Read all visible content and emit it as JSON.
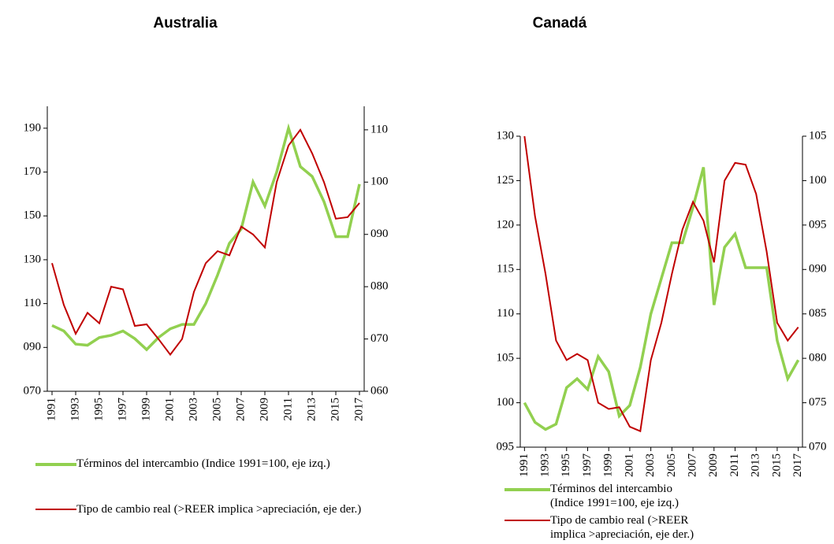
{
  "chart_data": [
    {
      "type": "line",
      "title": "Australia",
      "x": [
        1991,
        1992,
        1993,
        1994,
        1995,
        1996,
        1997,
        1998,
        1999,
        2000,
        2001,
        2002,
        2003,
        2004,
        2005,
        2006,
        2007,
        2008,
        2009,
        2010,
        2011,
        2012,
        2013,
        2014,
        2015,
        2016,
        2017
      ],
      "xlim": [
        1990.6,
        2017.4
      ],
      "xticks": [
        1991,
        1993,
        1995,
        1997,
        1999,
        2001,
        2003,
        2005,
        2007,
        2009,
        2011,
        2013,
        2015,
        2017
      ],
      "ylim": [
        70,
        200
      ],
      "yticks": [
        {
          "value": 70,
          "label": "070"
        },
        {
          "value": 90,
          "label": "090"
        },
        110,
        130,
        150,
        170,
        190
      ],
      "y2lim": [
        60,
        114.5
      ],
      "y2ticks": [
        {
          "value": 60,
          "label": "060"
        },
        {
          "value": 70,
          "label": "070"
        },
        {
          "value": 80,
          "label": "080"
        },
        {
          "value": 90,
          "label": "090"
        },
        100,
        110
      ],
      "series": [
        {
          "name": "Términos del intercambio (Indice 1991=100, eje izq.)",
          "color": "#92d050",
          "values": [
            100,
            97.5,
            91.5,
            91,
            94.5,
            95.5,
            97.5,
            94,
            89,
            94.5,
            98.5,
            100.5,
            100.5,
            110,
            123,
            137.5,
            144,
            165.5,
            154.5,
            170,
            190,
            172.5,
            168,
            156.5,
            140.5,
            140.5,
            164.5
          ]
        },
        {
          "name": "Tipo de cambio real (>REER implica >apreciación, eje der.)",
          "color": "#c00000",
          "axis": "y2",
          "values": [
            84.5,
            76.5,
            71,
            75,
            73,
            80,
            79.5,
            72.5,
            72.8,
            70,
            67,
            70,
            79,
            84.5,
            86.8,
            86,
            91.5,
            90,
            87.5,
            100,
            107,
            110,
            105.5,
            100,
            93,
            93.3,
            96
          ]
        }
      ]
    },
    {
      "type": "line",
      "title": "Canadá",
      "x": [
        1991,
        1992,
        1993,
        1994,
        1995,
        1996,
        1997,
        1998,
        1999,
        2000,
        2001,
        2002,
        2003,
        2004,
        2005,
        2006,
        2007,
        2008,
        2009,
        2010,
        2011,
        2012,
        2013,
        2014,
        2015,
        2016,
        2017
      ],
      "xlim": [
        1990.6,
        2017.4
      ],
      "xticks": [
        1991,
        1993,
        1995,
        1997,
        1999,
        2001,
        2003,
        2005,
        2007,
        2009,
        2011,
        2013,
        2015,
        2017
      ],
      "ylim": [
        95,
        130
      ],
      "yticks": [
        {
          "value": 95,
          "label": "095"
        },
        100,
        105,
        110,
        115,
        120,
        125,
        130
      ],
      "y2lim": [
        70,
        105
      ],
      "y2ticks": [
        {
          "value": 70,
          "label": "070"
        },
        {
          "value": 75,
          "label": "075"
        },
        {
          "value": 80,
          "label": "080"
        },
        {
          "value": 85,
          "label": "085"
        },
        {
          "value": 90,
          "label": "090"
        },
        {
          "value": 95,
          "label": "095"
        },
        100,
        105
      ],
      "series": [
        {
          "name": "Términos del intercambio (Indice 1991=100, eje izq.)",
          "color": "#92d050",
          "values": [
            100,
            97.8,
            97,
            97.6,
            101.7,
            102.7,
            101.5,
            105.2,
            103.5,
            98.5,
            99.7,
            104,
            110,
            114,
            118,
            118,
            122,
            126.5,
            111,
            117.5,
            119,
            115.2,
            115.2,
            115.2,
            107,
            102.7,
            104.8
          ]
        },
        {
          "name": "Tipo de cambio real (>REER implica >apreciación, eje der.)",
          "color": "#c00000",
          "axis": "y2",
          "values": [
            105,
            96,
            89.5,
            82,
            79.8,
            80.5,
            79.8,
            75,
            74.3,
            74.5,
            72.3,
            71.8,
            79.8,
            84,
            89.5,
            94.5,
            97.6,
            95.5,
            90.8,
            100,
            102,
            101.8,
            98.5,
            92,
            84,
            82,
            83.5
          ]
        }
      ]
    }
  ]
}
